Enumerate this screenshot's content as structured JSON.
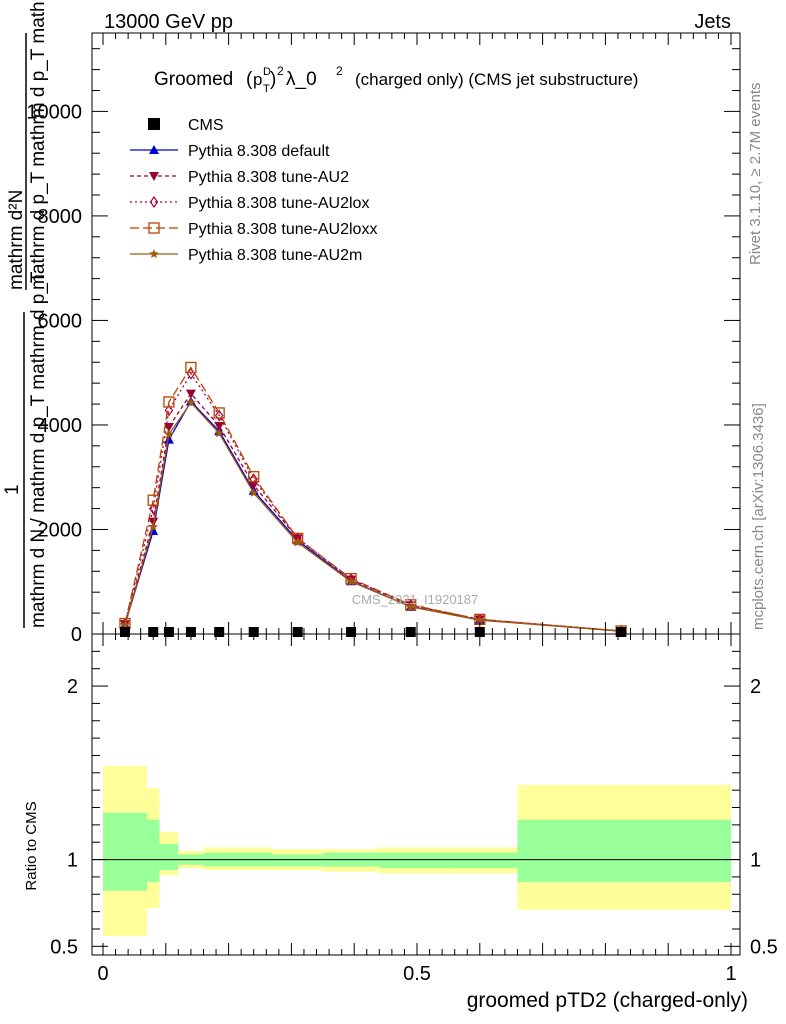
{
  "header": {
    "energy": "13000 GeV pp",
    "category": "Jets"
  },
  "side_labels": {
    "rivet": "Rivet 3.1.10, ≥ 2.7M events",
    "mcplots": "mcplots.cern.ch [arXiv:1306.3436]"
  },
  "chart_data": {
    "type": "line",
    "title": "Groomed (p_T^D)^2 λ_0^2  (charged only) (CMS jet substructure)",
    "title_parts": {
      "pre": "Groomed",
      "p": "p",
      "sup_d": "D",
      "sub_t": "T",
      "sq": "2",
      "lam": "λ_0",
      "sq2": "2",
      "post": "(charged only) (CMS jet substructure)"
    },
    "watermark": "CMS_2021_I1920187",
    "xlabel": "groomed pTD2 (charged-only)",
    "ylabel_top_numerator": "mathrm d²N",
    "ylabel_top_denominator": "mathrm d p_T mathrm d p_T mathrm d lambda",
    "ylabel_one": "1",
    "ylabel_main_denominator": "mathrm d N / mathrm d p_T mathrm d p_T",
    "ylabel_ratio": "Ratio to CMS",
    "xlim": [
      0,
      1
    ],
    "ylim": [
      0,
      11500
    ],
    "ratio_ylim": [
      0.45,
      2.3
    ],
    "x_ticks": [
      "0",
      "0.5",
      "1"
    ],
    "x_tick_values": [
      0,
      0.5,
      1
    ],
    "y_ticks": [
      "0",
      "2000",
      "4000",
      "6000",
      "8000",
      "10000"
    ],
    "y_tick_values": [
      0,
      2000,
      4000,
      6000,
      8000,
      10000
    ],
    "ratio_ticks": [
      "0.5",
      "1",
      "2"
    ],
    "ratio_tick_values": [
      0.5,
      1,
      2
    ],
    "legend_position": "top-left",
    "x": [
      0.035,
      0.08,
      0.105,
      0.14,
      0.185,
      0.24,
      0.31,
      0.395,
      0.49,
      0.6,
      0.825
    ],
    "cms": {
      "name": "CMS",
      "values": [
        5,
        20,
        35,
        35,
        25,
        20,
        15,
        10,
        8,
        5,
        2
      ]
    },
    "series": [
      {
        "name": "Pythia 8.308 default",
        "color": "#0000cc",
        "dash": "",
        "marker": "triangle-up",
        "values": [
          180,
          1970,
          3720,
          4450,
          3880,
          2740,
          1790,
          1010,
          520,
          270,
          55
        ]
      },
      {
        "name": "Pythia 8.308 tune-AU2",
        "color": "#990033",
        "dash": "4,3",
        "marker": "triangle-down",
        "values": [
          190,
          2150,
          3960,
          4600,
          3980,
          2850,
          1830,
          1040,
          550,
          280,
          57
        ]
      },
      {
        "name": "Pythia 8.308 tune-AU2lox",
        "color": "#aa0044",
        "dash": "2,3",
        "marker": "diamond-open",
        "values": [
          195,
          2400,
          4280,
          4980,
          4180,
          2960,
          1830,
          1050,
          550,
          280,
          58
        ]
      },
      {
        "name": "Pythia 8.308 tune-AU2loxx",
        "color": "#b84400",
        "dash": "9,4",
        "marker": "square-open",
        "values": [
          200,
          2560,
          4440,
          5100,
          4230,
          3010,
          1830,
          1060,
          560,
          280,
          58
        ]
      },
      {
        "name": "Pythia 8.308 tune-AU2m",
        "color": "#a05a10",
        "dash": "",
        "marker": "star",
        "values": [
          175,
          2050,
          3820,
          4430,
          3840,
          2700,
          1750,
          1000,
          520,
          265,
          54
        ]
      }
    ],
    "ratio_bands": [
      {
        "x0": 0.0,
        "x1": 0.07,
        "inner": [
          0.82,
          1.27
        ],
        "outer": [
          0.56,
          1.54
        ]
      },
      {
        "x0": 0.07,
        "x1": 0.09,
        "inner": [
          0.87,
          1.23
        ],
        "outer": [
          0.72,
          1.41
        ]
      },
      {
        "x0": 0.09,
        "x1": 0.12,
        "inner": [
          0.94,
          1.09
        ],
        "outer": [
          0.91,
          1.16
        ]
      },
      {
        "x0": 0.12,
        "x1": 0.16,
        "inner": [
          0.97,
          1.03
        ],
        "outer": [
          0.95,
          1.05
        ]
      },
      {
        "x0": 0.16,
        "x1": 0.27,
        "inner": [
          0.96,
          1.04
        ],
        "outer": [
          0.94,
          1.07
        ]
      },
      {
        "x0": 0.27,
        "x1": 0.35,
        "inner": [
          0.96,
          1.03
        ],
        "outer": [
          0.94,
          1.06
        ]
      },
      {
        "x0": 0.35,
        "x1": 0.44,
        "inner": [
          0.96,
          1.04
        ],
        "outer": [
          0.93,
          1.06
        ]
      },
      {
        "x0": 0.44,
        "x1": 0.55,
        "inner": [
          0.95,
          1.04
        ],
        "outer": [
          0.92,
          1.07
        ]
      },
      {
        "x0": 0.55,
        "x1": 0.66,
        "inner": [
          0.95,
          1.04
        ],
        "outer": [
          0.92,
          1.07
        ]
      },
      {
        "x0": 0.66,
        "x1": 1.0,
        "inner": [
          0.87,
          1.23
        ],
        "outer": [
          0.71,
          1.43
        ]
      }
    ],
    "colors": {
      "inner_band": "#99ff99",
      "outer_band": "#ffff99"
    }
  }
}
